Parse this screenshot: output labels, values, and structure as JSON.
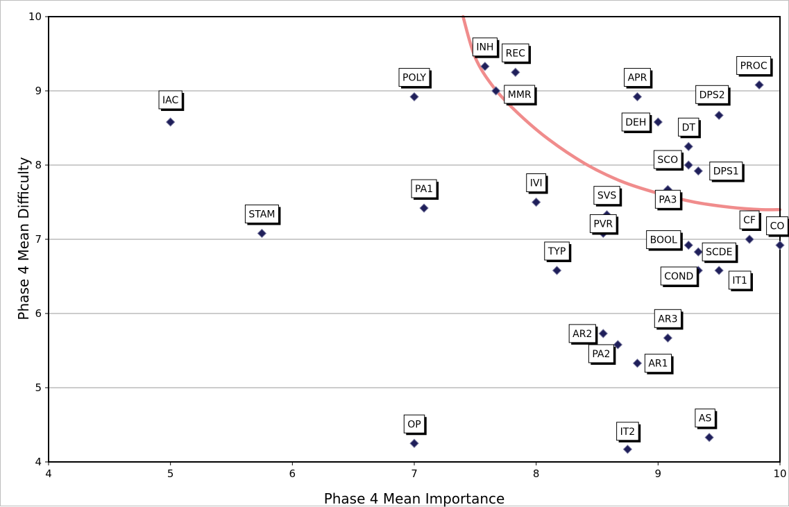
{
  "chart_data": {
    "type": "scatter",
    "title": "",
    "xlabel": "Phase 4 Mean Importance",
    "ylabel": "Phase 4 Mean Difficulty",
    "xlim": [
      4,
      10
    ],
    "ylim": [
      4,
      10
    ],
    "xticks": [
      "4",
      "5",
      "6",
      "7",
      "8",
      "9",
      "10"
    ],
    "yticks": [
      "4",
      "5",
      "6",
      "7",
      "8",
      "9",
      "10"
    ],
    "grid": "horizontal",
    "marker_color": "#1f1f5a",
    "curve_color": "#f08c8c",
    "points": [
      {
        "label": "IAC",
        "x": 5.0,
        "y": 8.58
      },
      {
        "label": "STAM",
        "x": 5.75,
        "y": 7.08
      },
      {
        "label": "POLY",
        "x": 7.0,
        "y": 8.92
      },
      {
        "label": "PA1",
        "x": 7.08,
        "y": 7.42
      },
      {
        "label": "OP",
        "x": 7.0,
        "y": 4.25
      },
      {
        "label": "INH",
        "x": 7.58,
        "y": 9.33
      },
      {
        "label": "REC",
        "x": 7.83,
        "y": 9.25
      },
      {
        "label": "MMR",
        "x": 7.67,
        "y": 9.0
      },
      {
        "label": "IVI",
        "x": 8.0,
        "y": 7.5
      },
      {
        "label": "TYP",
        "x": 8.17,
        "y": 6.58
      },
      {
        "label": "SVS",
        "x": 8.58,
        "y": 7.33
      },
      {
        "label": "PVR",
        "x": 8.55,
        "y": 7.08
      },
      {
        "label": "AR2",
        "x": 8.55,
        "y": 5.73
      },
      {
        "label": "PA2",
        "x": 8.67,
        "y": 5.58
      },
      {
        "label": "AR1",
        "x": 8.83,
        "y": 5.33
      },
      {
        "label": "IT2",
        "x": 8.75,
        "y": 4.17
      },
      {
        "label": "APR",
        "x": 8.83,
        "y": 8.92
      },
      {
        "label": "DEH",
        "x": 9.0,
        "y": 8.58
      },
      {
        "label": "DT",
        "x": 9.25,
        "y": 8.25
      },
      {
        "label": "SCO",
        "x": 9.25,
        "y": 8.0
      },
      {
        "label": "DPS1",
        "x": 9.33,
        "y": 7.92
      },
      {
        "label": "PA3",
        "x": 9.08,
        "y": 7.67
      },
      {
        "label": "DPS2",
        "x": 9.5,
        "y": 8.67
      },
      {
        "label": "PROC",
        "x": 9.83,
        "y": 9.08
      },
      {
        "label": "CF",
        "x": 9.75,
        "y": 7.0
      },
      {
        "label": "CO",
        "x": 10.0,
        "y": 6.92
      },
      {
        "label": "BOOL",
        "x": 9.25,
        "y": 6.92
      },
      {
        "label": "SCDE",
        "x": 9.33,
        "y": 6.83
      },
      {
        "label": "COND",
        "x": 9.33,
        "y": 6.58
      },
      {
        "label": "IT1",
        "x": 9.5,
        "y": 6.58
      },
      {
        "label": "AR3",
        "x": 9.08,
        "y": 5.67
      },
      {
        "label": "AS",
        "x": 9.42,
        "y": 4.33
      }
    ],
    "curve": [
      {
        "x": 7.4,
        "y": 10.0
      },
      {
        "x": 7.5,
        "y": 9.45
      },
      {
        "x": 7.65,
        "y": 9.05
      },
      {
        "x": 7.85,
        "y": 8.7
      },
      {
        "x": 8.1,
        "y": 8.35
      },
      {
        "x": 8.4,
        "y": 8.02
      },
      {
        "x": 8.7,
        "y": 7.78
      },
      {
        "x": 9.0,
        "y": 7.62
      },
      {
        "x": 9.3,
        "y": 7.5
      },
      {
        "x": 9.6,
        "y": 7.43
      },
      {
        "x": 9.85,
        "y": 7.4
      },
      {
        "x": 10.0,
        "y": 7.4
      }
    ]
  }
}
